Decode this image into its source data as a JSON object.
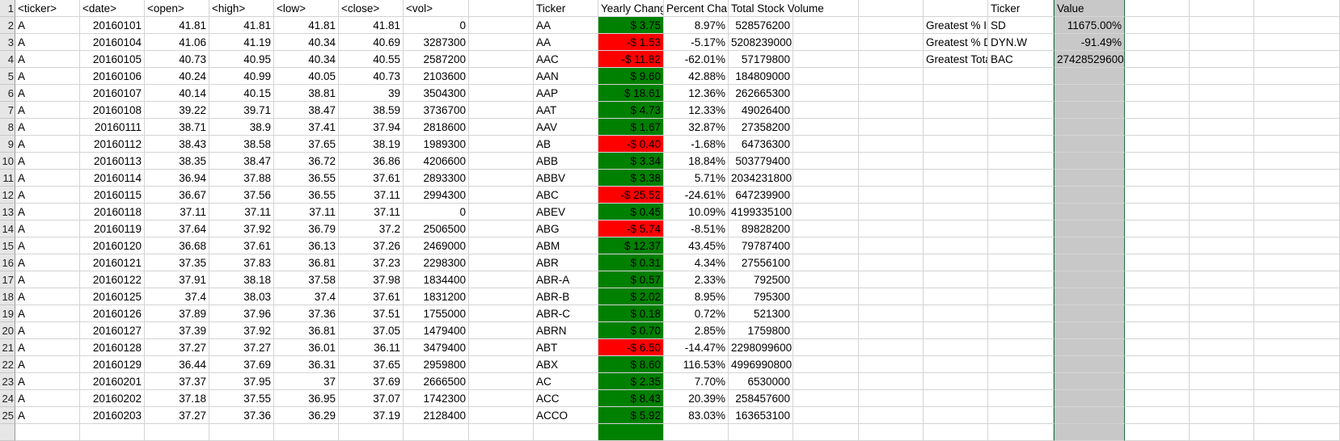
{
  "headers": {
    "ticker": "<ticker>",
    "date": "<date>",
    "open": "<open>",
    "high": "<high>",
    "low": "<low>",
    "close": "<close>",
    "vol": "<vol>",
    "summary_ticker": "Ticker",
    "yearly_change": "Yearly Change",
    "percent_change": "Percent Change",
    "total_volume": "Total Stock Volume",
    "ticker2": "Ticker",
    "value": "Value"
  },
  "greatest": [
    {
      "label": "Greatest % Increase",
      "ticker": "SD",
      "value": "11675.00%"
    },
    {
      "label": "Greatest % Decrease",
      "ticker": "DYN.W",
      "value": "-91.49%"
    },
    {
      "label": "Greatest Total Volume",
      "ticker": "BAC",
      "value": "27428529600"
    }
  ],
  "rows": [
    {
      "n": "2",
      "t": "A",
      "d": "20160101",
      "o": "41.81",
      "h": "41.81",
      "l": "41.81",
      "c": "41.81",
      "v": "0",
      "st": "AA",
      "yc": "$ 3.75",
      "pc": "8.97%",
      "tv": "528576200",
      "neg": false
    },
    {
      "n": "3",
      "t": "A",
      "d": "20160104",
      "o": "41.06",
      "h": "41.19",
      "l": "40.34",
      "c": "40.69",
      "v": "3287300",
      "st": "AA",
      "yc": "-$ 1.53",
      "pc": "-5.17%",
      "tv": "5208239000",
      "neg": true
    },
    {
      "n": "4",
      "t": "A",
      "d": "20160105",
      "o": "40.73",
      "h": "40.95",
      "l": "40.34",
      "c": "40.55",
      "v": "2587200",
      "st": "AAC",
      "yc": "-$ 11.82",
      "pc": "-62.01%",
      "tv": "57179800",
      "neg": true
    },
    {
      "n": "5",
      "t": "A",
      "d": "20160106",
      "o": "40.24",
      "h": "40.99",
      "l": "40.05",
      "c": "40.73",
      "v": "2103600",
      "st": "AAN",
      "yc": "$ 9.60",
      "pc": "42.88%",
      "tv": "184809000",
      "neg": false
    },
    {
      "n": "6",
      "t": "A",
      "d": "20160107",
      "o": "40.14",
      "h": "40.15",
      "l": "38.81",
      "c": "39",
      "v": "3504300",
      "st": "AAP",
      "yc": "$ 18.61",
      "pc": "12.36%",
      "tv": "262665300",
      "neg": false
    },
    {
      "n": "7",
      "t": "A",
      "d": "20160108",
      "o": "39.22",
      "h": "39.71",
      "l": "38.47",
      "c": "38.59",
      "v": "3736700",
      "st": "AAT",
      "yc": "$ 4.73",
      "pc": "12.33%",
      "tv": "49026400",
      "neg": false
    },
    {
      "n": "8",
      "t": "A",
      "d": "20160111",
      "o": "38.71",
      "h": "38.9",
      "l": "37.41",
      "c": "37.94",
      "v": "2818600",
      "st": "AAV",
      "yc": "$ 1.67",
      "pc": "32.87%",
      "tv": "27358200",
      "neg": false
    },
    {
      "n": "9",
      "t": "A",
      "d": "20160112",
      "o": "38.43",
      "h": "38.58",
      "l": "37.65",
      "c": "38.19",
      "v": "1989300",
      "st": "AB",
      "yc": "-$ 0.40",
      "pc": "-1.68%",
      "tv": "64736300",
      "neg": true
    },
    {
      "n": "10",
      "t": "A",
      "d": "20160113",
      "o": "38.35",
      "h": "38.47",
      "l": "36.72",
      "c": "36.86",
      "v": "4206600",
      "st": "ABB",
      "yc": "$ 3.34",
      "pc": "18.84%",
      "tv": "503779400",
      "neg": false
    },
    {
      "n": "11",
      "t": "A",
      "d": "20160114",
      "o": "36.94",
      "h": "37.88",
      "l": "36.55",
      "c": "37.61",
      "v": "2893300",
      "st": "ABBV",
      "yc": "$ 3.38",
      "pc": "5.71%",
      "tv": "2034231800",
      "neg": false
    },
    {
      "n": "12",
      "t": "A",
      "d": "20160115",
      "o": "36.67",
      "h": "37.56",
      "l": "36.55",
      "c": "37.11",
      "v": "2994300",
      "st": "ABC",
      "yc": "-$ 25.52",
      "pc": "-24.61%",
      "tv": "647239900",
      "neg": true
    },
    {
      "n": "13",
      "t": "A",
      "d": "20160118",
      "o": "37.11",
      "h": "37.11",
      "l": "37.11",
      "c": "37.11",
      "v": "0",
      "st": "ABEV",
      "yc": "$ 0.45",
      "pc": "10.09%",
      "tv": "4199335100",
      "neg": false
    },
    {
      "n": "14",
      "t": "A",
      "d": "20160119",
      "o": "37.64",
      "h": "37.92",
      "l": "36.79",
      "c": "37.2",
      "v": "2506500",
      "st": "ABG",
      "yc": "-$ 5.74",
      "pc": "-8.51%",
      "tv": "89828200",
      "neg": true
    },
    {
      "n": "15",
      "t": "A",
      "d": "20160120",
      "o": "36.68",
      "h": "37.61",
      "l": "36.13",
      "c": "37.26",
      "v": "2469000",
      "st": "ABM",
      "yc": "$ 12.37",
      "pc": "43.45%",
      "tv": "79787400",
      "neg": false
    },
    {
      "n": "16",
      "t": "A",
      "d": "20160121",
      "o": "37.35",
      "h": "37.83",
      "l": "36.81",
      "c": "37.23",
      "v": "2298300",
      "st": "ABR",
      "yc": "$ 0.31",
      "pc": "4.34%",
      "tv": "27556100",
      "neg": false
    },
    {
      "n": "17",
      "t": "A",
      "d": "20160122",
      "o": "37.91",
      "h": "38.18",
      "l": "37.58",
      "c": "37.98",
      "v": "1834400",
      "st": "ABR-A",
      "yc": "$ 0.57",
      "pc": "2.33%",
      "tv": "792500",
      "neg": false
    },
    {
      "n": "18",
      "t": "A",
      "d": "20160125",
      "o": "37.4",
      "h": "38.03",
      "l": "37.4",
      "c": "37.61",
      "v": "1831200",
      "st": "ABR-B",
      "yc": "$ 2.02",
      "pc": "8.95%",
      "tv": "795300",
      "neg": false
    },
    {
      "n": "19",
      "t": "A",
      "d": "20160126",
      "o": "37.89",
      "h": "37.96",
      "l": "37.36",
      "c": "37.51",
      "v": "1755000",
      "st": "ABR-C",
      "yc": "$ 0.18",
      "pc": "0.72%",
      "tv": "521300",
      "neg": false
    },
    {
      "n": "20",
      "t": "A",
      "d": "20160127",
      "o": "37.39",
      "h": "37.92",
      "l": "36.81",
      "c": "37.05",
      "v": "1479400",
      "st": "ABRN",
      "yc": "$ 0.70",
      "pc": "2.85%",
      "tv": "1759800",
      "neg": false
    },
    {
      "n": "21",
      "t": "A",
      "d": "20160128",
      "o": "37.27",
      "h": "37.27",
      "l": "36.01",
      "c": "36.11",
      "v": "3479400",
      "st": "ABT",
      "yc": "-$ 6.50",
      "pc": "-14.47%",
      "tv": "2298099600",
      "neg": true
    },
    {
      "n": "22",
      "t": "A",
      "d": "20160129",
      "o": "36.44",
      "h": "37.69",
      "l": "36.31",
      "c": "37.65",
      "v": "2959800",
      "st": "ABX",
      "yc": "$ 8.60",
      "pc": "116.53%",
      "tv": "4996990800",
      "neg": false
    },
    {
      "n": "23",
      "t": "A",
      "d": "20160201",
      "o": "37.37",
      "h": "37.95",
      "l": "37",
      "c": "37.69",
      "v": "2666500",
      "st": "AC",
      "yc": "$ 2.35",
      "pc": "7.70%",
      "tv": "6530000",
      "neg": false
    },
    {
      "n": "24",
      "t": "A",
      "d": "20160202",
      "o": "37.18",
      "h": "37.55",
      "l": "36.95",
      "c": "37.07",
      "v": "1742300",
      "st": "ACC",
      "yc": "$ 8.43",
      "pc": "20.39%",
      "tv": "258457600",
      "neg": false
    },
    {
      "n": "25",
      "t": "A",
      "d": "20160203",
      "o": "37.27",
      "h": "37.36",
      "l": "36.29",
      "c": "37.19",
      "v": "2128400",
      "st": "ACCO",
      "yc": "$ 5.92",
      "pc": "83.03%",
      "tv": "163653100",
      "neg": false
    }
  ]
}
